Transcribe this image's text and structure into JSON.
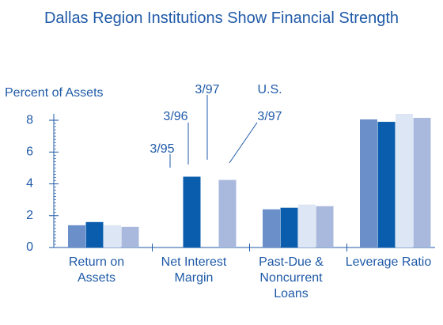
{
  "chart_data": {
    "type": "bar",
    "title": "Dallas Region Institutions Show Financial Strength",
    "y_label": "Percent of Assets",
    "categories": [
      "Return on Assets",
      "Net Interest Margin",
      "Past-Due & Noncurrent Loans",
      "Leverage Ratio"
    ],
    "series": [
      {
        "name": "3/95",
        "color": "#6b8fc9",
        "values": [
          1.4,
          null,
          2.4,
          8.05
        ]
      },
      {
        "name": "3/96",
        "color": "#0a5cad",
        "values": [
          1.6,
          4.45,
          2.5,
          7.9
        ]
      },
      {
        "name": "3/97",
        "color": "#dde6f4",
        "values": [
          1.4,
          null,
          2.7,
          8.4
        ]
      },
      {
        "name": "U.S. 3/97",
        "color": "#a9b9de",
        "values": [
          1.3,
          4.25,
          2.6,
          8.15
        ]
      }
    ],
    "ylim": [
      0,
      8.4
    ],
    "yticks": [
      0,
      2,
      4,
      6,
      8
    ],
    "grid": false
  }
}
